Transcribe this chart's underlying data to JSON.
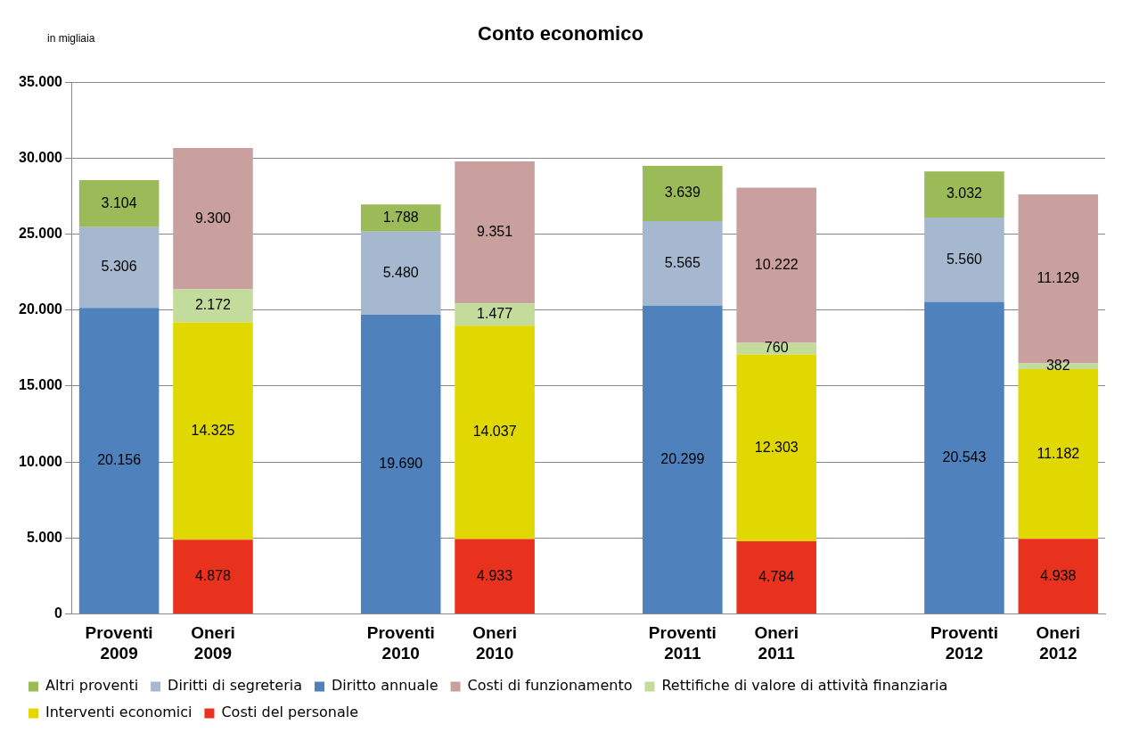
{
  "chart_data": {
    "type": "bar",
    "title": "Conto economico",
    "annotations": [
      "in migliaia"
    ],
    "categories": [
      "Proventi 2009",
      "Oneri 2009",
      null,
      "Proventi 2010",
      "Oneri 2010",
      null,
      "Proventi 2011",
      "Oneri 2011",
      null,
      "Proventi 2012",
      "Oneri 2012"
    ],
    "stacked": true,
    "grid": "y",
    "legend": "bottom",
    "ylim": [
      0,
      35000
    ],
    "yticks": [
      {
        "value": 0,
        "label": "0"
      },
      {
        "value": 5000,
        "label": "5.000"
      },
      {
        "value": 10000,
        "label": "10.000"
      },
      {
        "value": 15000,
        "label": "15.000"
      },
      {
        "value": 20000,
        "label": "20.000"
      },
      {
        "value": 25000,
        "label": "25.000"
      },
      {
        "value": 30000,
        "label": "30.000"
      },
      {
        "value": 35000,
        "label": "35.000"
      }
    ],
    "series": [
      {
        "name": "Costi del personale",
        "color": "#e8321e",
        "values": [
          null,
          4878,
          null,
          null,
          4933,
          null,
          null,
          4784,
          null,
          null,
          4938
        ],
        "value_labels": [
          null,
          "4.878",
          null,
          null,
          "4.933",
          null,
          null,
          "4.784",
          null,
          null,
          "4.938"
        ]
      },
      {
        "name": "Interventi economici",
        "color": "#e0d800",
        "values": [
          null,
          14325,
          null,
          null,
          14037,
          null,
          null,
          12303,
          null,
          null,
          11182
        ],
        "value_labels": [
          null,
          "14.325",
          null,
          null,
          "14.037",
          null,
          null,
          "12.303",
          null,
          null,
          "11.182"
        ]
      },
      {
        "name": "Rettifiche di valore di attività finanziaria",
        "color": "#c3dc9b",
        "values": [
          null,
          2172,
          null,
          null,
          1477,
          null,
          null,
          760,
          null,
          null,
          382
        ],
        "value_labels": [
          null,
          "2.172",
          null,
          null,
          "1.477",
          null,
          null,
          "760",
          null,
          null,
          "382"
        ]
      },
      {
        "name": "Costi di funzionamento",
        "color": "#c9a09e",
        "values": [
          null,
          9300,
          null,
          null,
          9351,
          null,
          null,
          10222,
          null,
          null,
          11129
        ],
        "value_labels": [
          null,
          "9.300",
          null,
          null,
          "9.351",
          null,
          null,
          "10.222",
          null,
          null,
          "11.129"
        ]
      },
      {
        "name": "Diritto annuale",
        "color": "#4f81bd",
        "values": [
          20156,
          null,
          null,
          19690,
          null,
          null,
          20299,
          null,
          null,
          20543,
          null
        ],
        "value_labels": [
          "20.156",
          null,
          null,
          "19.690",
          null,
          null,
          "20.299",
          null,
          null,
          "20.543",
          null
        ]
      },
      {
        "name": "Diritti di segreteria",
        "color": "#a5b8d0",
        "values": [
          5306,
          null,
          null,
          5480,
          null,
          null,
          5565,
          null,
          null,
          5560,
          null
        ],
        "value_labels": [
          "5.306",
          null,
          null,
          "5.480",
          null,
          null,
          "5.565",
          null,
          null,
          "5.560",
          null
        ]
      },
      {
        "name": "Altri proventi",
        "color": "#9bbb59",
        "values": [
          3104,
          null,
          null,
          1788,
          null,
          null,
          3639,
          null,
          null,
          3032,
          null
        ],
        "value_labels": [
          "3.104",
          null,
          null,
          "1.788",
          null,
          null,
          "3.639",
          null,
          null,
          "3.032",
          null
        ]
      }
    ]
  }
}
